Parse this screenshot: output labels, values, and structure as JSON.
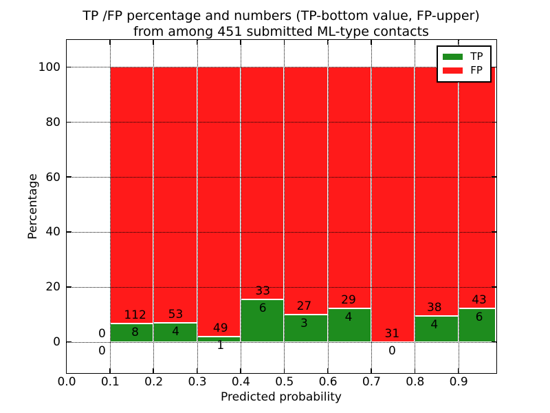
{
  "title": {
    "line1": "TP /FP percentage and numbers (TP-bottom value, FP-upper)",
    "line2": "from among 451 submitted ML-type contacts"
  },
  "axes": {
    "xlabel": "Predicted probability",
    "ylabel": "Percentage",
    "xtick_labels": [
      "0.0",
      "0.1",
      "0.2",
      "0.3",
      "0.4",
      "0.5",
      "0.6",
      "0.7",
      "0.8",
      "0.9"
    ],
    "xtick_values": [
      0.0,
      0.1,
      0.2,
      0.3,
      0.4,
      0.5,
      0.6,
      0.7,
      0.8,
      0.9
    ],
    "ytick_labels": [
      "0",
      "20",
      "40",
      "60",
      "80",
      "100"
    ],
    "ytick_values": [
      0,
      20,
      40,
      60,
      80,
      100
    ],
    "xlim": [
      0,
      0.985
    ],
    "ylim": [
      -11,
      110
    ],
    "grid_style": "dotted"
  },
  "legend": {
    "position": "upper-right",
    "entries": [
      {
        "label": "TP",
        "color": "#1e8c1e"
      },
      {
        "label": "FP",
        "color": "#ff1a1a"
      }
    ]
  },
  "chart_data": {
    "type": "bar",
    "subtype": "stacked-percentage-histogram",
    "total_contacts": 451,
    "colors": {
      "tp": "#1e8c1e",
      "fp": "#ff1a1a",
      "bar_edge": "#ffffff"
    },
    "annotation_note": "FP count printed above TP-bar top, TP count printed below it",
    "bins": [
      {
        "range": [
          0.0,
          0.1
        ],
        "tp": 0,
        "fp": 0,
        "tp_pct": 0.0,
        "fp_pct": 0.0,
        "label_x": 0.082,
        "draw_bar": false,
        "fp_label": "0",
        "tp_label": "0"
      },
      {
        "range": [
          0.1,
          0.2
        ],
        "tp": 8,
        "fp": 112,
        "tp_pct": 6.67,
        "fp_pct": 93.33,
        "label_x": 0.158,
        "draw_bar": true,
        "fp_label": "112",
        "tp_label": "8"
      },
      {
        "range": [
          0.2,
          0.3
        ],
        "tp": 4,
        "fp": 53,
        "tp_pct": 7.02,
        "fp_pct": 92.98,
        "label_x": 0.251,
        "draw_bar": true,
        "fp_label": "53",
        "tp_label": "4"
      },
      {
        "range": [
          0.3,
          0.4
        ],
        "tp": 1,
        "fp": 49,
        "tp_pct": 2.0,
        "fp_pct": 98.0,
        "label_x": 0.354,
        "draw_bar": true,
        "fp_label": "49",
        "tp_label": "1"
      },
      {
        "range": [
          0.4,
          0.5
        ],
        "tp": 6,
        "fp": 33,
        "tp_pct": 15.38,
        "fp_pct": 84.62,
        "label_x": 0.451,
        "draw_bar": true,
        "fp_label": "33",
        "tp_label": "6"
      },
      {
        "range": [
          0.5,
          0.6
        ],
        "tp": 3,
        "fp": 27,
        "tp_pct": 10.0,
        "fp_pct": 90.0,
        "label_x": 0.546,
        "draw_bar": true,
        "fp_label": "27",
        "tp_label": "3"
      },
      {
        "range": [
          0.6,
          0.7
        ],
        "tp": 4,
        "fp": 29,
        "tp_pct": 12.12,
        "fp_pct": 87.88,
        "label_x": 0.648,
        "draw_bar": true,
        "fp_label": "29",
        "tp_label": "4"
      },
      {
        "range": [
          0.7,
          0.8
        ],
        "tp": 0,
        "fp": 31,
        "tp_pct": 0.0,
        "fp_pct": 100.0,
        "label_x": 0.748,
        "draw_bar": true,
        "fp_label": "31",
        "tp_label": "0"
      },
      {
        "range": [
          0.8,
          0.9
        ],
        "tp": 4,
        "fp": 38,
        "tp_pct": 9.52,
        "fp_pct": 90.48,
        "label_x": 0.845,
        "draw_bar": true,
        "fp_label": "38",
        "tp_label": "4"
      },
      {
        "range": [
          0.9,
          1.0
        ],
        "tp": 6,
        "fp": 43,
        "tp_pct": 12.24,
        "fp_pct": 87.76,
        "label_x": 0.948,
        "draw_bar": true,
        "fp_label": "43",
        "tp_label": "6"
      }
    ]
  }
}
